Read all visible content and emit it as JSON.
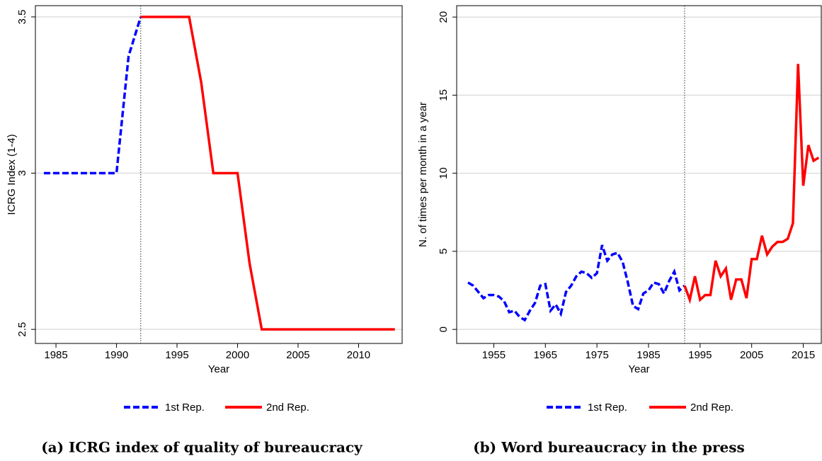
{
  "chart_data": [
    {
      "type": "line",
      "caption": "(a) ICRG index of quality of bureaucracy",
      "xlabel": "Year",
      "ylabel": "ICRG Index (1-4)",
      "xlim": [
        1983.3,
        2013.6
      ],
      "ylim": [
        2.455,
        3.536
      ],
      "xticks": [
        1985,
        1990,
        1995,
        2000,
        2005,
        2010
      ],
      "yticks": [
        2.5,
        3,
        3.5
      ],
      "grid": true,
      "legend": "bottom",
      "reference_line": 1992,
      "series": [
        {
          "name": "1st Rep.",
          "color": "#0000ff",
          "dashed": true,
          "x": [
            1984,
            1985,
            1986,
            1987,
            1988,
            1989,
            1990,
            1991,
            1992
          ],
          "values": [
            3,
            3,
            3,
            3,
            3,
            3,
            3,
            3.375,
            3.5
          ]
        },
        {
          "name": "2nd Rep.",
          "color": "#ff0000",
          "dashed": false,
          "x": [
            1992,
            1993,
            1994,
            1995,
            1996,
            1997,
            1998,
            1999,
            2000,
            2001,
            2002,
            2003,
            2004,
            2005,
            2006,
            2007,
            2008,
            2009,
            2010,
            2011,
            2012,
            2013
          ],
          "values": [
            3.5,
            3.5,
            3.5,
            3.5,
            3.5,
            3.29,
            3,
            3,
            3,
            2.71,
            2.5,
            2.5,
            2.5,
            2.5,
            2.5,
            2.5,
            2.5,
            2.5,
            2.5,
            2.5,
            2.5,
            2.5
          ]
        }
      ]
    },
    {
      "type": "line",
      "caption": "(b) Word bureaucracy in the press",
      "xlabel": "Year",
      "ylabel": "N. of times per month in a year",
      "xlim": [
        1947.8,
        2018.5
      ],
      "ylim": [
        -0.9,
        20.73
      ],
      "xticks": [
        1955,
        1965,
        1975,
        1985,
        1995,
        2005,
        2015
      ],
      "yticks": [
        0,
        5,
        10,
        15,
        20
      ],
      "grid": true,
      "legend": "bottom",
      "reference_line": 1992,
      "series": [
        {
          "name": "1st Rep.",
          "color": "#0000ff",
          "dashed": true,
          "x": [
            1950,
            1951,
            1952,
            1953,
            1954,
            1955,
            1956,
            1957,
            1958,
            1959,
            1960,
            1961,
            1962,
            1963,
            1964,
            1965,
            1966,
            1967,
            1968,
            1969,
            1970,
            1971,
            1972,
            1973,
            1974,
            1975,
            1976,
            1977,
            1978,
            1979,
            1980,
            1981,
            1982,
            1983,
            1984,
            1985,
            1986,
            1987,
            1988,
            1989,
            1990,
            1991,
            1992
          ],
          "values": [
            3.0,
            2.8,
            2.4,
            2.0,
            2.2,
            2.2,
            2.1,
            1.8,
            1.1,
            1.2,
            0.8,
            0.6,
            1.2,
            1.7,
            2.8,
            2.9,
            1.2,
            1.6,
            1.0,
            2.4,
            2.8,
            3.4,
            3.7,
            3.6,
            3.3,
            3.6,
            5.4,
            4.4,
            4.8,
            4.9,
            4.3,
            3.0,
            1.5,
            1.3,
            2.3,
            2.5,
            3.0,
            2.9,
            2.3,
            3.1,
            3.7,
            2.5,
            2.8
          ]
        },
        {
          "name": "2nd Rep.",
          "color": "#ff0000",
          "dashed": false,
          "x": [
            1992,
            1993,
            1994,
            1995,
            1996,
            1997,
            1998,
            1999,
            2000,
            2001,
            2002,
            2003,
            2004,
            2005,
            2006,
            2007,
            2008,
            2009,
            2010,
            2011,
            2012,
            2013,
            2014,
            2015,
            2016,
            2017,
            2018
          ],
          "values": [
            2.8,
            1.9,
            3.4,
            1.9,
            2.2,
            2.2,
            4.4,
            3.4,
            3.9,
            1.9,
            3.2,
            3.2,
            2.0,
            4.5,
            4.5,
            6.0,
            4.8,
            5.3,
            5.6,
            5.6,
            5.8,
            6.8,
            17.0,
            9.2,
            11.8,
            10.8,
            11.0
          ]
        }
      ]
    }
  ]
}
